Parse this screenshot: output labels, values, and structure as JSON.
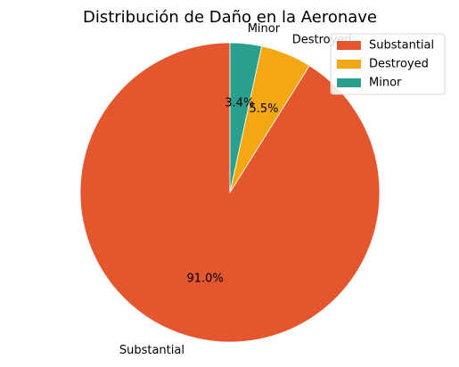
{
  "chart_data": {
    "type": "pie",
    "title": "Distribución de Daño en la Aeronave",
    "categories": [
      "Substantial",
      "Destroyed",
      "Minor"
    ],
    "values": [
      91.0,
      5.5,
      3.4
    ],
    "percent_labels": [
      "91.0%",
      "5.5%",
      "3.4%"
    ],
    "colors": [
      "#e4572e",
      "#f3a712",
      "#29a08e"
    ],
    "start_angle_deg": 90,
    "direction": "counterclockwise",
    "legend": {
      "position": "top-right",
      "entries": [
        "Substantial",
        "Destroyed",
        "Minor"
      ]
    }
  }
}
